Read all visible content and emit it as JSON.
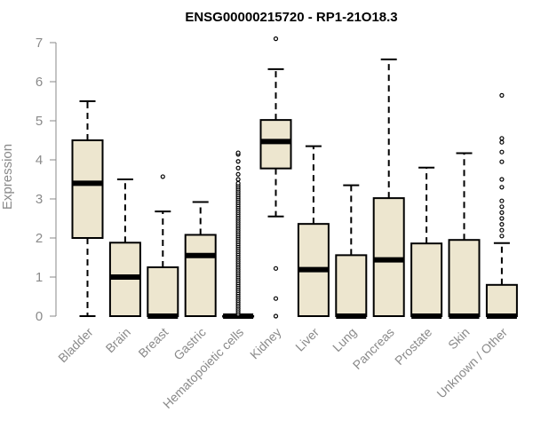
{
  "chart_data": {
    "type": "box",
    "title": "ENSG00000215720 - RP1-21O18.3",
    "ylabel": "Expression",
    "ylim": [
      0,
      7
    ],
    "yticks": [
      0,
      1,
      2,
      3,
      4,
      5,
      6,
      7
    ],
    "box_fill": "#ede6cf",
    "categories": [
      "Bladder",
      "Brain",
      "Breast",
      "Gastric",
      "Hematopoietic cells",
      "Kidney",
      "Liver",
      "Lung",
      "Pancreas",
      "Prostate",
      "Skin",
      "Unknown / Other"
    ],
    "boxes": [
      {
        "min": 0,
        "q1": 2.0,
        "median": 3.4,
        "q3": 4.5,
        "max": 5.5,
        "outliers": []
      },
      {
        "min": 0,
        "q1": 0,
        "median": 1.0,
        "q3": 1.88,
        "max": 3.5,
        "outliers": []
      },
      {
        "min": 0,
        "q1": 0,
        "median": 0,
        "q3": 1.25,
        "max": 2.68,
        "outliers": [
          3.57
        ]
      },
      {
        "min": 0,
        "q1": 0,
        "median": 1.55,
        "q3": 2.08,
        "max": 2.92,
        "outliers": []
      },
      {
        "min": 0,
        "q1": 0,
        "median": 0,
        "q3": 0,
        "max": 0,
        "outliers": [
          0.05,
          0.1,
          0.15,
          0.2,
          0.25,
          0.3,
          0.35,
          0.4,
          0.45,
          0.5,
          0.55,
          0.6,
          0.65,
          0.7,
          0.75,
          0.8,
          0.85,
          0.9,
          0.95,
          1.0,
          1.05,
          1.1,
          1.15,
          1.2,
          1.25,
          1.3,
          1.35,
          1.4,
          1.45,
          1.5,
          1.55,
          1.6,
          1.65,
          1.7,
          1.75,
          1.8,
          1.85,
          1.9,
          1.95,
          2.0,
          2.05,
          2.1,
          2.15,
          2.2,
          2.25,
          2.3,
          2.35,
          2.4,
          2.45,
          2.5,
          2.55,
          2.6,
          2.65,
          2.7,
          2.75,
          2.8,
          2.85,
          2.9,
          2.95,
          3.0,
          3.05,
          3.1,
          3.15,
          3.2,
          3.25,
          3.3,
          3.35,
          3.4,
          3.5,
          3.63,
          3.79,
          3.96,
          4.14,
          4.18
        ]
      },
      {
        "min": 2.55,
        "q1": 3.78,
        "median": 4.47,
        "q3": 5.02,
        "max": 6.32,
        "outliers": [
          1.22,
          0.45,
          0,
          7.1
        ]
      },
      {
        "min": 0,
        "q1": 0,
        "median": 1.19,
        "q3": 2.36,
        "max": 4.35,
        "outliers": []
      },
      {
        "min": 0,
        "q1": 0,
        "median": 0,
        "q3": 1.56,
        "max": 3.35,
        "outliers": []
      },
      {
        "min": 0,
        "q1": 0,
        "median": 1.44,
        "q3": 3.02,
        "max": 6.57,
        "outliers": []
      },
      {
        "min": 0,
        "q1": 0,
        "median": 0,
        "q3": 1.86,
        "max": 3.8,
        "outliers": []
      },
      {
        "min": 0,
        "q1": 0,
        "median": 0,
        "q3": 1.95,
        "max": 4.17,
        "outliers": []
      },
      {
        "min": 0,
        "q1": 0,
        "median": 0,
        "q3": 0.8,
        "max": 1.87,
        "outliers": [
          2.05,
          2.2,
          2.35,
          2.5,
          2.65,
          2.8,
          2.95,
          3.3,
          3.5,
          3.95,
          4.2,
          4.45,
          4.55,
          5.65
        ]
      }
    ]
  }
}
